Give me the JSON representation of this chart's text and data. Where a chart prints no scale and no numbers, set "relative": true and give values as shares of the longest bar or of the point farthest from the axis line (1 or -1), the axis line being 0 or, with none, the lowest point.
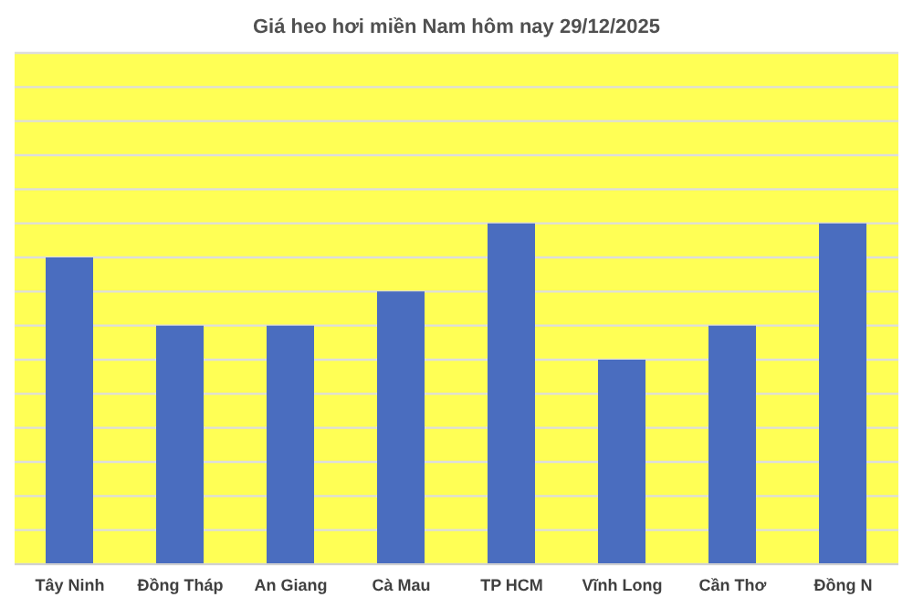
{
  "chart_data": {
    "type": "bar",
    "title": "Giá heo hơi miền Nam hôm nay 29/12/2025",
    "categories": [
      "Tây Ninh",
      "Đồng Tháp",
      "An Giang",
      "Cà Mau",
      "TP HCM",
      "Vĩnh Long",
      "Cần Thơ",
      "Đồng N"
    ],
    "values": [
      0.9,
      0.7,
      0.7,
      0.8,
      1,
      0.6,
      0.7,
      1
    ],
    "color": "#4a6dbf",
    "relative": true,
    "grid": "y",
    "legend": false
  }
}
